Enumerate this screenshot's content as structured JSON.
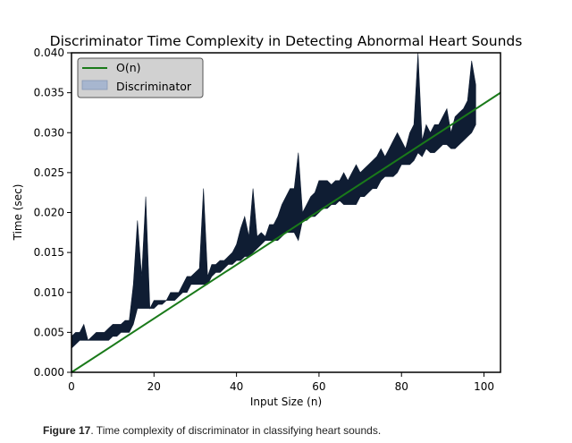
{
  "chart_data": {
    "type": "area",
    "title": "Discriminator Time Complexity in Detecting Abnormal Heart Sounds",
    "xlabel": "Input Size (n)",
    "ylabel": "Time (sec)",
    "xlim": [
      0,
      104
    ],
    "ylim": [
      0,
      0.04
    ],
    "x_ticks": [
      "0",
      "20",
      "40",
      "60",
      "80",
      "100"
    ],
    "y_ticks": [
      "0.000",
      "0.005",
      "0.010",
      "0.015",
      "0.020",
      "0.025",
      "0.030",
      "0.035",
      "0.040"
    ],
    "grid": false,
    "legend": {
      "placement": "top-left",
      "entries": [
        "O(n)",
        "Discriminator"
      ]
    },
    "colors": {
      "linear": "#1a7a1a",
      "band": "#0f1d33",
      "legend_patch": "#a7b6cf"
    },
    "series": [
      {
        "name": "O(n)",
        "type": "line",
        "x": [
          0,
          104
        ],
        "y": [
          0,
          0.035
        ]
      },
      {
        "name": "Discriminator",
        "type": "band",
        "x": [
          0,
          1,
          2,
          3,
          4,
          5,
          6,
          7,
          8,
          9,
          10,
          11,
          12,
          13,
          14,
          15,
          16,
          17,
          18,
          19,
          20,
          21,
          22,
          23,
          24,
          25,
          26,
          27,
          28,
          29,
          30,
          31,
          32,
          33,
          34,
          35,
          36,
          37,
          38,
          39,
          40,
          41,
          42,
          43,
          44,
          45,
          46,
          47,
          48,
          49,
          50,
          51,
          52,
          53,
          54,
          55,
          56,
          57,
          58,
          59,
          60,
          61,
          62,
          63,
          64,
          65,
          66,
          67,
          68,
          69,
          70,
          71,
          72,
          73,
          74,
          75,
          76,
          77,
          78,
          79,
          80,
          81,
          82,
          83,
          84,
          85,
          86,
          87,
          88,
          89,
          90,
          91,
          92,
          93,
          94,
          95,
          96,
          97,
          98
        ],
        "upper": [
          0.0045,
          0.005,
          0.005,
          0.006,
          0.004,
          0.0045,
          0.005,
          0.005,
          0.005,
          0.0055,
          0.006,
          0.006,
          0.006,
          0.0065,
          0.0065,
          0.011,
          0.019,
          0.012,
          0.022,
          0.008,
          0.009,
          0.009,
          0.009,
          0.009,
          0.01,
          0.01,
          0.01,
          0.011,
          0.012,
          0.012,
          0.0125,
          0.013,
          0.023,
          0.012,
          0.0135,
          0.0135,
          0.014,
          0.014,
          0.0145,
          0.015,
          0.016,
          0.018,
          0.0195,
          0.017,
          0.023,
          0.017,
          0.0175,
          0.017,
          0.0185,
          0.0185,
          0.0195,
          0.021,
          0.022,
          0.023,
          0.023,
          0.0275,
          0.02,
          0.021,
          0.022,
          0.0225,
          0.024,
          0.024,
          0.024,
          0.0235,
          0.024,
          0.024,
          0.025,
          0.024,
          0.025,
          0.026,
          0.025,
          0.0255,
          0.026,
          0.0265,
          0.027,
          0.028,
          0.027,
          0.028,
          0.029,
          0.03,
          0.029,
          0.028,
          0.03,
          0.031,
          0.04,
          0.029,
          0.031,
          0.03,
          0.031,
          0.031,
          0.032,
          0.033,
          0.03,
          0.032,
          0.0325,
          0.033,
          0.034,
          0.039,
          0.036
        ],
        "lower": [
          0.003,
          0.0035,
          0.004,
          0.004,
          0.004,
          0.004,
          0.004,
          0.004,
          0.004,
          0.004,
          0.0045,
          0.0045,
          0.005,
          0.005,
          0.005,
          0.006,
          0.008,
          0.008,
          0.008,
          0.008,
          0.008,
          0.0085,
          0.0085,
          0.009,
          0.009,
          0.009,
          0.0095,
          0.01,
          0.01,
          0.011,
          0.011,
          0.011,
          0.011,
          0.011,
          0.012,
          0.0125,
          0.0125,
          0.013,
          0.0135,
          0.0135,
          0.014,
          0.014,
          0.0145,
          0.0145,
          0.015,
          0.0155,
          0.016,
          0.0165,
          0.0165,
          0.0165,
          0.0165,
          0.017,
          0.0175,
          0.0175,
          0.0175,
          0.0165,
          0.019,
          0.019,
          0.0195,
          0.0195,
          0.02,
          0.0205,
          0.0205,
          0.021,
          0.021,
          0.0215,
          0.021,
          0.021,
          0.021,
          0.021,
          0.022,
          0.022,
          0.0225,
          0.023,
          0.023,
          0.024,
          0.0245,
          0.0245,
          0.0245,
          0.025,
          0.026,
          0.026,
          0.026,
          0.0265,
          0.0275,
          0.027,
          0.028,
          0.0275,
          0.0275,
          0.028,
          0.0285,
          0.0285,
          0.028,
          0.028,
          0.0285,
          0.029,
          0.0295,
          0.03,
          0.031
        ]
      }
    ]
  },
  "caption": {
    "label": "Figure 17",
    "text": ". Time complexity of discriminator in classifying heart sounds."
  }
}
